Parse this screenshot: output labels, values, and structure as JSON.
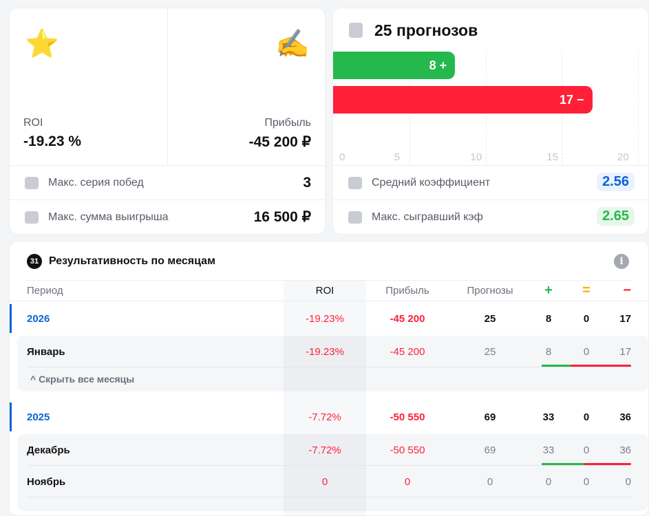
{
  "summary": {
    "roi_label": "ROI",
    "roi_value": "-19.23 %",
    "profit_label": "Прибыль",
    "profit_value": "-45 200 ₽",
    "rows": [
      {
        "label": "Макс. серия побед",
        "value": "3"
      },
      {
        "label": "Макс. сумма выигрыша",
        "value": "16 500 ₽"
      }
    ]
  },
  "forecasts": {
    "title": "25 прогнозов",
    "chart_data": {
      "type": "bar",
      "orientation": "horizontal",
      "categories": [
        "+",
        "−"
      ],
      "values": [
        8,
        17
      ],
      "labels": [
        "8 +",
        "17 −"
      ],
      "colors": [
        "#25b84c",
        "#ff2038"
      ],
      "xlim": [
        0,
        20
      ],
      "ticks": [
        "0",
        "5",
        "10",
        "15",
        "20"
      ]
    },
    "rows": [
      {
        "label": "Средний коэффициент",
        "value": "2.56"
      },
      {
        "label": "Макс. сыгравший кэф",
        "value": "2.65"
      }
    ]
  },
  "monthly": {
    "calendar_icon": "31",
    "title": "Результативность по месяцам",
    "headers": [
      "Период",
      "ROI",
      "Прибыль",
      "Прогнозы",
      "+",
      "=",
      "−"
    ],
    "years": [
      {
        "period": "2026",
        "roi": "-19.23%",
        "profit": "-45 200",
        "count": "25",
        "win": "8",
        "draw": "0",
        "lose": "17",
        "months": [
          {
            "period": "Январь",
            "roi": "-19.23%",
            "profit": "-45 200",
            "count": "25",
            "win": "8",
            "draw": "0",
            "lose": "17"
          }
        ],
        "toggle": "^ Скрыть все месяцы"
      },
      {
        "period": "2025",
        "roi": "-7.72%",
        "profit": "-50 550",
        "count": "69",
        "win": "33",
        "draw": "0",
        "lose": "36",
        "months": [
          {
            "period": "Декабрь",
            "roi": "-7.72%",
            "profit": "-50 550",
            "count": "69",
            "win": "33",
            "draw": "0",
            "lose": "36"
          },
          {
            "period": "Ноябрь",
            "roi": "0",
            "profit": "0",
            "count": "0",
            "win": "0",
            "draw": "0",
            "lose": "0"
          }
        ]
      }
    ]
  }
}
